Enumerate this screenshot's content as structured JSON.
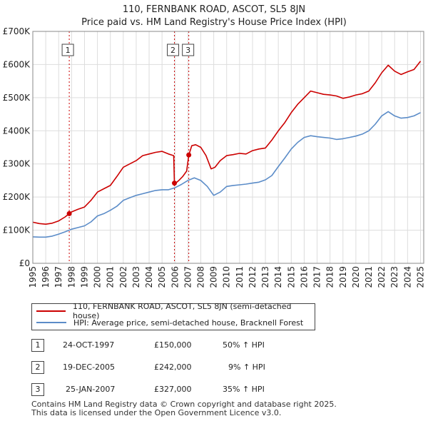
{
  "header": {
    "title_line1": "110, FERNBANK ROAD, ASCOT, SL5 8JN",
    "title_line2": "Price paid vs. HM Land Registry's House Price Index (HPI)"
  },
  "chart_data": {
    "type": "line",
    "title": "110, FERNBANK ROAD, ASCOT, SL5 8JN",
    "subtitle": "Price paid vs. HM Land Registry's House Price Index (HPI)",
    "xlabel": "",
    "ylabel": "",
    "xlim": [
      1995,
      2025.25
    ],
    "ylim": [
      0,
      700000
    ],
    "x_ticks": [
      "1995",
      "1996",
      "1997",
      "1998",
      "1999",
      "2000",
      "2001",
      "2002",
      "2003",
      "2004",
      "2005",
      "2006",
      "2007",
      "2008",
      "2009",
      "2010",
      "2011",
      "2012",
      "2013",
      "2014",
      "2015",
      "2016",
      "2017",
      "2018",
      "2019",
      "2020",
      "2021",
      "2022",
      "2023",
      "2024",
      "2025"
    ],
    "y_ticks": [
      {
        "value": 0,
        "label": "£0"
      },
      {
        "value": 100000,
        "label": "£100K"
      },
      {
        "value": 200000,
        "label": "£200K"
      },
      {
        "value": 300000,
        "label": "£300K"
      },
      {
        "value": 400000,
        "label": "£400K"
      },
      {
        "value": 500000,
        "label": "£500K"
      },
      {
        "value": 600000,
        "label": "£600K"
      },
      {
        "value": 700000,
        "label": "£700K"
      }
    ],
    "grid": true,
    "series": [
      {
        "name": "110, FERNBANK ROAD, ASCOT, SL5 8JN (semi-detached house)",
        "color": "#cc0000",
        "x": [
          1995.0,
          1995.5,
          1996.0,
          1996.5,
          1997.0,
          1997.5,
          1997.82,
          1998.0,
          1998.5,
          1999.0,
          1999.5,
          2000.0,
          2000.5,
          2001.0,
          2001.5,
          2002.0,
          2002.5,
          2003.0,
          2003.5,
          2004.0,
          2004.5,
          2005.0,
          2005.5,
          2005.9,
          2005.96,
          2006.0,
          2006.3,
          2006.6,
          2006.9,
          2007.07,
          2007.3,
          2007.6,
          2008.0,
          2008.4,
          2008.8,
          2009.1,
          2009.5,
          2010.0,
          2010.5,
          2011.0,
          2011.5,
          2012.0,
          2012.5,
          2013.0,
          2013.5,
          2014.0,
          2014.5,
          2015.0,
          2015.5,
          2016.0,
          2016.5,
          2017.0,
          2017.5,
          2018.0,
          2018.5,
          2019.0,
          2019.5,
          2020.0,
          2020.5,
          2021.0,
          2021.5,
          2022.0,
          2022.5,
          2023.0,
          2023.5,
          2024.0,
          2024.5,
          2025.0
        ],
        "values": [
          124000,
          120000,
          118000,
          121000,
          128000,
          140000,
          150000,
          155000,
          163000,
          170000,
          190000,
          215000,
          225000,
          235000,
          262000,
          290000,
          300000,
          310000,
          325000,
          330000,
          335000,
          338000,
          330000,
          325000,
          242000,
          240000,
          250000,
          262000,
          278000,
          327000,
          355000,
          358000,
          350000,
          325000,
          285000,
          290000,
          310000,
          325000,
          328000,
          332000,
          330000,
          340000,
          345000,
          348000,
          372000,
          400000,
          425000,
          455000,
          480000,
          500000,
          520000,
          515000,
          510000,
          508000,
          505000,
          498000,
          502000,
          508000,
          512000,
          520000,
          545000,
          575000,
          598000,
          580000,
          570000,
          578000,
          585000,
          610000
        ]
      },
      {
        "name": "HPI: Average price, semi-detached house, Bracknell Forest",
        "color": "#5b8cc8",
        "x": [
          1995.0,
          1995.5,
          1996.0,
          1996.5,
          1997.0,
          1997.5,
          1998.0,
          1998.5,
          1999.0,
          1999.5,
          2000.0,
          2000.5,
          2001.0,
          2001.5,
          2002.0,
          2002.5,
          2003.0,
          2003.5,
          2004.0,
          2004.5,
          2005.0,
          2005.5,
          2006.0,
          2006.5,
          2007.0,
          2007.5,
          2008.0,
          2008.5,
          2009.0,
          2009.5,
          2010.0,
          2010.5,
          2011.0,
          2011.5,
          2012.0,
          2012.5,
          2013.0,
          2013.5,
          2014.0,
          2014.5,
          2015.0,
          2015.5,
          2016.0,
          2016.5,
          2017.0,
          2017.5,
          2018.0,
          2018.5,
          2019.0,
          2019.5,
          2020.0,
          2020.5,
          2021.0,
          2021.5,
          2022.0,
          2022.5,
          2023.0,
          2023.5,
          2024.0,
          2024.5,
          2025.0
        ],
        "values": [
          80000,
          79000,
          79000,
          82000,
          88000,
          95000,
          103000,
          108000,
          113000,
          125000,
          143000,
          150000,
          160000,
          172000,
          190000,
          198000,
          205000,
          210000,
          215000,
          220000,
          222000,
          222000,
          228000,
          238000,
          250000,
          258000,
          250000,
          232000,
          205000,
          215000,
          232000,
          235000,
          237000,
          239000,
          242000,
          245000,
          252000,
          265000,
          292000,
          318000,
          345000,
          365000,
          380000,
          385000,
          382000,
          380000,
          378000,
          374000,
          376000,
          380000,
          384000,
          390000,
          400000,
          420000,
          445000,
          458000,
          445000,
          438000,
          440000,
          445000,
          455000
        ]
      }
    ],
    "markers": [
      {
        "label": "1",
        "x": 1997.82,
        "value": 150000
      },
      {
        "label": "2",
        "x": 2005.96,
        "value": 242000
      },
      {
        "label": "3",
        "x": 2007.07,
        "value": 327000
      }
    ],
    "legend_position": "below"
  },
  "legend": {
    "red_label": "110, FERNBANK ROAD, ASCOT, SL5 8JN (semi-detached house)",
    "blue_label": "HPI: Average price, semi-detached house, Bracknell Forest"
  },
  "transactions": [
    {
      "num": "1",
      "date": "24-OCT-1997",
      "price": "£150,000",
      "hpi": "50% ↑ HPI"
    },
    {
      "num": "2",
      "date": "19-DEC-2005",
      "price": "£242,000",
      "hpi": "9% ↑ HPI"
    },
    {
      "num": "3",
      "date": "25-JAN-2007",
      "price": "£327,000",
      "hpi": "35% ↑ HPI"
    }
  ],
  "footer": {
    "line1": "Contains HM Land Registry data © Crown copyright and database right 2025.",
    "line2": "This data is licensed under the Open Government Licence v3.0."
  }
}
